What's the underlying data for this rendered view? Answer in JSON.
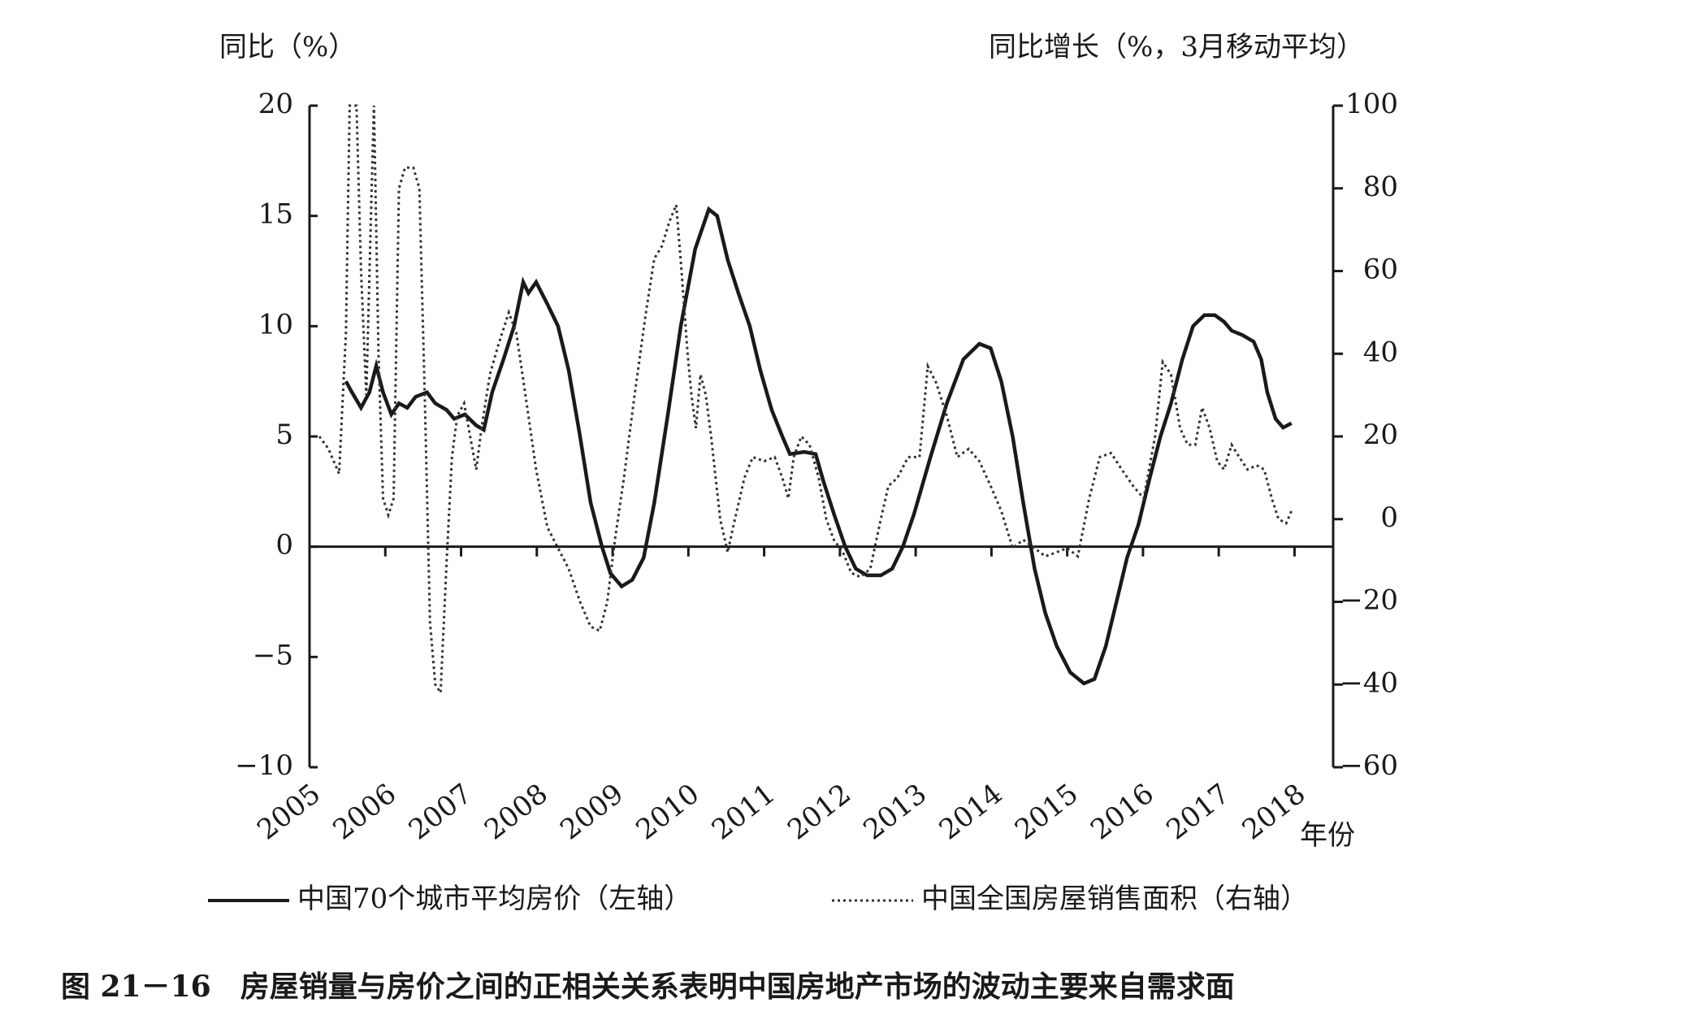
{
  "chart_data": {
    "type": "line",
    "caption": "图 21－16　房屋销量与房价之间的正相关关系表明中国房地产市场的波动主要来自需求面",
    "y_label": "同比（%）",
    "y2_label": "同比增长（%，3月移动平均）",
    "x_label": "年份",
    "xlim": [
      2005,
      2018.51
    ],
    "xticks": [
      2005,
      2006,
      2007,
      2008,
      2009,
      2010,
      2011,
      2012,
      2013,
      2014,
      2015,
      2016,
      2017,
      2018
    ],
    "ylim": [
      -10,
      20
    ],
    "yticks": [
      {
        "value": -10,
        "label": "−10"
      },
      {
        "value": -5,
        "label": "−5"
      },
      0,
      5,
      10,
      15,
      20
    ],
    "y2lim": [
      -60,
      100
    ],
    "y2ticks": [
      {
        "value": -60,
        "label": "−60"
      },
      {
        "value": -40,
        "label": "−40"
      },
      {
        "value": -20,
        "label": "−20"
      },
      0,
      20,
      40,
      60,
      80,
      100
    ],
    "series": [
      {
        "name": "中国70个城市平均房价（左轴）",
        "color": "#1a1a1a",
        "style": "solid",
        "x": [
          2005.48,
          2005.56,
          2005.68,
          2005.79,
          2005.88,
          2005.97,
          2006.08,
          2006.18,
          2006.29,
          2006.4,
          2006.55,
          2006.66,
          2006.81,
          2006.91,
          2007.05,
          2007.2,
          2007.3,
          2007.41,
          2007.56,
          2007.7,
          2007.82,
          2007.89,
          2007.99,
          2008.14,
          2008.28,
          2008.42,
          2008.57,
          2008.71,
          2008.86,
          2008.97,
          2009.12,
          2009.26,
          2009.41,
          2009.55,
          2009.73,
          2009.9,
          2010.09,
          2010.27,
          2010.38,
          2010.52,
          2010.66,
          2010.81,
          2010.95,
          2011.1,
          2011.24,
          2011.34,
          2011.53,
          2011.68,
          2011.78,
          2011.92,
          2012.07,
          2012.21,
          2012.36,
          2012.54,
          2012.69,
          2012.83,
          2012.98,
          2013.19,
          2013.41,
          2013.63,
          2013.84,
          2013.99,
          2014.13,
          2014.28,
          2014.42,
          2014.57,
          2014.71,
          2014.86,
          2015.04,
          2015.22,
          2015.36,
          2015.51,
          2015.65,
          2015.79,
          2015.94,
          2016.08,
          2016.23,
          2016.37,
          2016.52,
          2016.66,
          2016.81,
          2016.95,
          2017.07,
          2017.17,
          2017.31,
          2017.46,
          2017.56,
          2017.64,
          2017.75,
          2017.85,
          2017.96
        ],
        "values": [
          7.5,
          7,
          6.3,
          7,
          8.2,
          7,
          6,
          6.5,
          6.3,
          6.8,
          7,
          6.5,
          6.2,
          5.8,
          6,
          5.5,
          5.3,
          7,
          8.5,
          10,
          12,
          11.5,
          12,
          11,
          10,
          8,
          5,
          2,
          0,
          -1.2,
          -1.8,
          -1.5,
          -0.5,
          2,
          6,
          10,
          13.5,
          15.3,
          15,
          13,
          11.5,
          10,
          8,
          6.2,
          5,
          4.2,
          4.3,
          4.2,
          3,
          1.5,
          0,
          -1,
          -1.3,
          -1.3,
          -1,
          0,
          1.5,
          4,
          6.5,
          8.5,
          9.2,
          9,
          7.5,
          5,
          2,
          -1,
          -3,
          -4.5,
          -5.7,
          -6.2,
          -6,
          -4.5,
          -2.5,
          -0.5,
          1,
          3,
          5,
          6.5,
          8.5,
          10,
          10.5,
          10.5,
          10.2,
          9.8,
          9.6,
          9.3,
          8.5,
          7,
          5.8,
          5.4,
          5.6
        ]
      },
      {
        "name": "中国全国房屋销售面积（右轴）",
        "color": "#333333",
        "style": "dotted",
        "axis": "y2",
        "x": [
          2005.13,
          2005.25,
          2005.39,
          2005.48,
          2005.53,
          2005.62,
          2005.68,
          2005.75,
          2005.82,
          2005.85,
          2005.91,
          2005.97,
          2006.04,
          2006.11,
          2006.18,
          2006.26,
          2006.37,
          2006.45,
          2006.52,
          2006.59,
          2006.66,
          2006.73,
          2006.81,
          2006.88,
          2006.95,
          2007.04,
          2007.12,
          2007.2,
          2007.27,
          2007.38,
          2007.49,
          2007.63,
          2007.73,
          2007.85,
          2007.99,
          2008.14,
          2008.28,
          2008.42,
          2008.57,
          2008.71,
          2008.83,
          2008.93,
          2009.03,
          2009.15,
          2009.29,
          2009.44,
          2009.55,
          2009.65,
          2009.75,
          2009.84,
          2009.91,
          2009.99,
          2010.04,
          2010.1,
          2010.16,
          2010.23,
          2010.3,
          2010.42,
          2010.52,
          2010.59,
          2010.74,
          2010.85,
          2011.0,
          2011.14,
          2011.24,
          2011.32,
          2011.39,
          2011.49,
          2011.6,
          2011.72,
          2011.82,
          2011.92,
          2012.04,
          2012.15,
          2012.27,
          2012.4,
          2012.54,
          2012.64,
          2012.76,
          2012.9,
          2013.05,
          2013.16,
          2013.27,
          2013.41,
          2013.55,
          2013.7,
          2013.84,
          2013.99,
          2014.13,
          2014.28,
          2014.42,
          2014.57,
          2014.71,
          2014.86,
          2015.0,
          2015.14,
          2015.29,
          2015.43,
          2015.58,
          2015.72,
          2015.87,
          2016.01,
          2016.16,
          2016.26,
          2016.37,
          2016.49,
          2016.59,
          2016.69,
          2016.78,
          2016.88,
          2016.98,
          2017.07,
          2017.17,
          2017.27,
          2017.38,
          2017.5,
          2017.6,
          2017.7,
          2017.79,
          2017.89,
          2017.96
        ],
        "values": [
          20,
          17,
          11,
          45,
          100,
          100,
          60,
          30,
          80,
          100,
          40,
          5,
          1,
          5,
          80,
          85,
          85,
          80,
          30,
          -25,
          -40,
          -42,
          -10,
          15,
          25,
          28,
          20,
          12,
          22,
          35,
          42,
          50,
          45,
          30,
          12,
          -2,
          -7,
          -12,
          -20,
          -26,
          -27,
          -20,
          -5,
          10,
          30,
          50,
          63,
          66,
          72,
          76,
          60,
          40,
          30,
          22,
          35,
          30,
          20,
          0,
          -8,
          -2,
          10,
          15,
          14,
          15,
          10,
          5,
          15,
          20,
          18,
          10,
          0,
          -5,
          -8,
          -13,
          -14,
          -12,
          0,
          8,
          10,
          15,
          15,
          37,
          33,
          25,
          15,
          17,
          14,
          8,
          2,
          -7,
          -5,
          -7,
          -9,
          -8,
          -7,
          -9,
          5,
          15,
          16,
          12,
          8,
          5,
          20,
          38,
          35,
          22,
          18,
          18,
          27,
          22,
          14,
          12,
          18,
          15,
          12,
          13,
          12,
          5,
          0,
          -1,
          2
        ]
      }
    ]
  }
}
